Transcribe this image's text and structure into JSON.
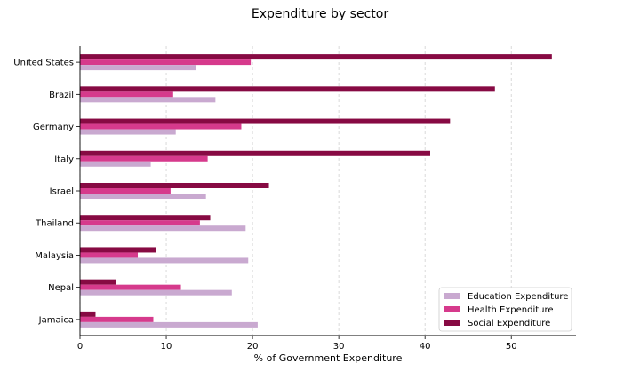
{
  "chart_data": {
    "type": "bar",
    "orientation": "horizontal",
    "title": "Expenditure by sector",
    "xlabel": "% of Government Expenditure",
    "ylabel": "",
    "xlim": [
      0,
      57.5
    ],
    "xticks": [
      0,
      10,
      20,
      30,
      40,
      50
    ],
    "grid": "vertical dashed",
    "legend_position": "bottom-right",
    "categories": [
      "United States",
      "Brazil",
      "Germany",
      "Italy",
      "Israel",
      "Thailand",
      "Malaysia",
      "Nepal",
      "Jamaica"
    ],
    "series": [
      {
        "name": "Education Expenditure",
        "color": "#c9a9d0",
        "values": [
          13.4,
          15.7,
          11.1,
          8.2,
          14.6,
          19.2,
          19.5,
          17.6,
          20.6
        ]
      },
      {
        "name": "Health Expenditure",
        "color": "#d63a8c",
        "values": [
          19.8,
          10.8,
          18.7,
          14.8,
          10.5,
          13.9,
          6.7,
          11.7,
          8.5
        ]
      },
      {
        "name": "Social Expenditure",
        "color": "#870a43",
        "values": [
          54.7,
          48.1,
          42.9,
          40.6,
          21.9,
          15.1,
          8.8,
          4.2,
          1.8
        ]
      }
    ]
  }
}
